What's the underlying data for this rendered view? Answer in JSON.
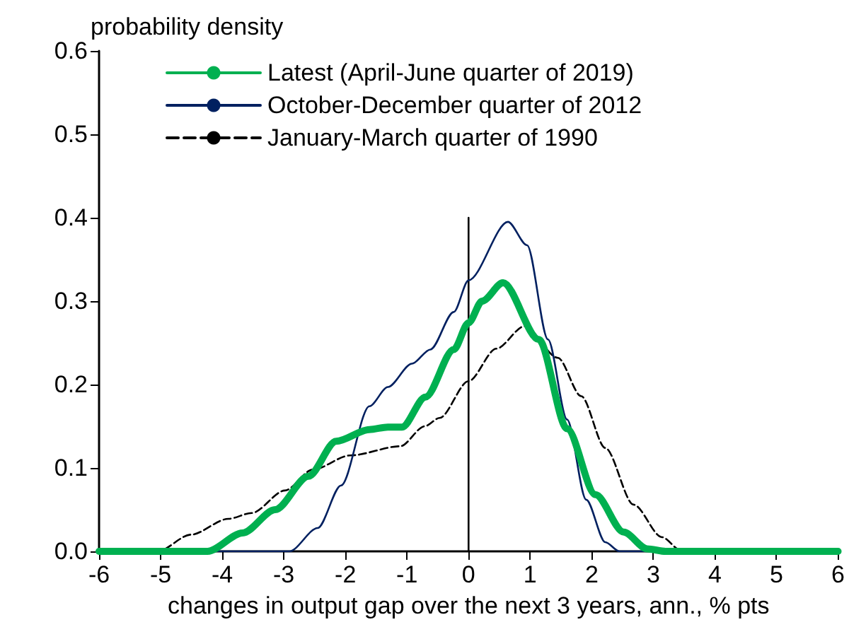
{
  "chart_data": {
    "type": "line",
    "ylabel": "probability density",
    "xlabel": "changes in output gap over the next 3 years, ann., % pts",
    "xlim": [
      -6,
      6
    ],
    "xticks": [
      -6,
      -5,
      -4,
      -3,
      -2,
      -1,
      0,
      1,
      2,
      3,
      4,
      5,
      6
    ],
    "ylim": [
      0,
      0.6
    ],
    "yticks": [
      {
        "value": 0,
        "label": "0.0"
      },
      {
        "value": 0.1,
        "label": "0.1"
      },
      {
        "value": 0.2,
        "label": "0.2"
      },
      {
        "value": 0.3,
        "label": "0.3"
      },
      {
        "value": 0.4,
        "label": "0.4"
      },
      {
        "value": 0.5,
        "label": "0.5"
      },
      {
        "value": 0.6,
        "label": "0.6"
      }
    ],
    "grid": false,
    "legend": "top left",
    "marker": "none",
    "series": [
      {
        "name": "Latest (April-June quarter of 2019)",
        "color": "#00b050",
        "line_style": "solid",
        "x": [
          -6,
          -4.24,
          -3.67,
          -3.14,
          -2.6,
          -2.15,
          -1.61,
          -1.31,
          -1.08,
          -0.7,
          -0.24,
          0,
          0.22,
          0.56,
          1.14,
          1.6,
          2.06,
          2.52,
          2.9,
          3.2,
          6
        ],
        "values": [
          0,
          0,
          0.022,
          0.05,
          0.09,
          0.132,
          0.146,
          0.149,
          0.149,
          0.185,
          0.242,
          0.274,
          0.3,
          0.322,
          0.254,
          0.147,
          0.068,
          0.023,
          0.003,
          0,
          0
        ]
      },
      {
        "name": "October-December quarter of 2012",
        "color": "#002060",
        "line_style": "solid",
        "x": [
          -6,
          -2.91,
          -2.45,
          -2.07,
          -1.61,
          -1.31,
          -0.92,
          -0.62,
          -0.24,
          0,
          0.64,
          0.95,
          1.29,
          1.6,
          1.91,
          2.22,
          2.45,
          6
        ],
        "values": [
          0,
          0,
          0.028,
          0.079,
          0.174,
          0.197,
          0.225,
          0.242,
          0.287,
          0.325,
          0.395,
          0.367,
          0.254,
          0.158,
          0.062,
          0.011,
          0,
          0
        ]
      },
      {
        "name": "January-March quarter of 1990",
        "color": "#000000",
        "line_style": "dashed",
        "x": [
          -6,
          -5.05,
          -4.51,
          -3.9,
          -3.52,
          -2.98,
          -2.53,
          -1.92,
          -1.11,
          -0.71,
          -0.47,
          0,
          0.45,
          0.91,
          1.45,
          1.83,
          2.22,
          2.68,
          3.14,
          3.45,
          6
        ],
        "values": [
          0,
          0,
          0.02,
          0.039,
          0.046,
          0.073,
          0.098,
          0.115,
          0.126,
          0.15,
          0.16,
          0.204,
          0.243,
          0.27,
          0.232,
          0.186,
          0.124,
          0.056,
          0.017,
          0.001,
          0
        ]
      },
      {
        "type": "line",
        "color": "#000000",
        "line_style": "solid",
        "x": [
          0,
          0
        ],
        "values": [
          0,
          0.4
        ]
      }
    ]
  }
}
